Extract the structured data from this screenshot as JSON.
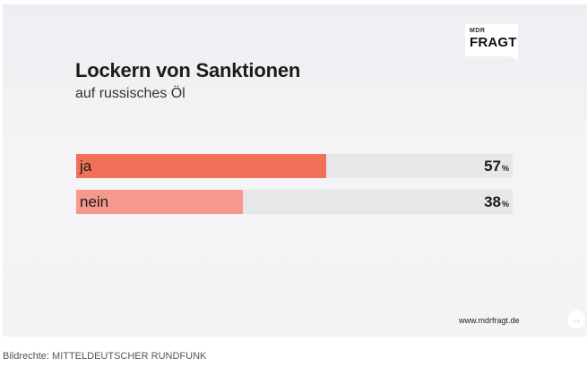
{
  "brand": {
    "logo_small": "MDR",
    "logo_big": "FRAGT",
    "url": "www.mdrfragt.de"
  },
  "chart_data": {
    "type": "bar",
    "orientation": "horizontal",
    "title": "Lockern von Sanktionen",
    "subtitle": "auf russisches Öl",
    "categories": [
      "ja",
      "nein"
    ],
    "values": [
      57,
      38
    ],
    "unit": "%",
    "xlim": [
      0,
      100
    ],
    "colors": [
      "#f2705a",
      "#f6988b"
    ],
    "track_color": "#e7e7ea",
    "grid": false,
    "legend": "none"
  },
  "caption": "Bildrechte: MITTELDEUTSCHER RUNDFUNK",
  "nav_icon": "arrow-right-icon"
}
